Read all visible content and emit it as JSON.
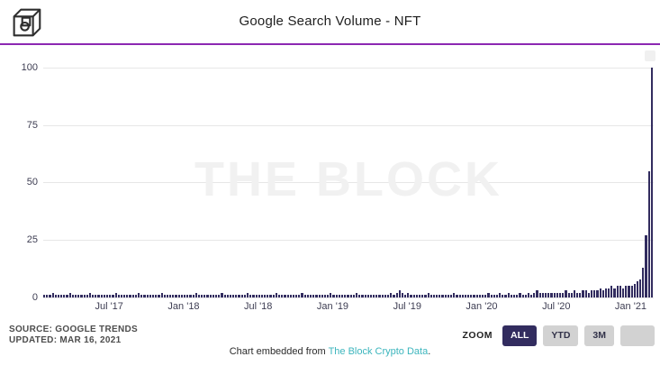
{
  "header": {
    "title": "Google Search Volume - NFT",
    "accent_color": "#8c28b2",
    "logo": "the-block-cube-logo"
  },
  "watermark": "THE BLOCK",
  "chart_data": {
    "type": "bar",
    "title": "Google Search Volume - NFT",
    "bar_color": "#322c5f",
    "grid": true,
    "ylim": [
      0,
      100
    ],
    "yticks": [
      0,
      25,
      50,
      75,
      100
    ],
    "x_description": "weekly values, late Jan 2017 through mid Mar 2021",
    "xticks": [
      {
        "label": "Jul '17",
        "index": 23
      },
      {
        "label": "Jan '18",
        "index": 49
      },
      {
        "label": "Jul '18",
        "index": 75
      },
      {
        "label": "Jan '19",
        "index": 101
      },
      {
        "label": "Jul '19",
        "index": 127
      },
      {
        "label": "Jan '20",
        "index": 153
      },
      {
        "label": "Jul '20",
        "index": 179
      },
      {
        "label": "Jan '21",
        "index": 205
      }
    ],
    "values": [
      1,
      1,
      1,
      2,
      1,
      1,
      1,
      1,
      1,
      2,
      1,
      1,
      1,
      1,
      1,
      1,
      2,
      1,
      1,
      1,
      1,
      1,
      1,
      1,
      1,
      2,
      1,
      1,
      1,
      1,
      1,
      1,
      1,
      2,
      1,
      1,
      1,
      1,
      1,
      1,
      1,
      2,
      1,
      1,
      1,
      1,
      1,
      1,
      1,
      1,
      1,
      1,
      1,
      2,
      1,
      1,
      1,
      1,
      1,
      1,
      1,
      1,
      2,
      1,
      1,
      1,
      1,
      1,
      1,
      1,
      1,
      2,
      1,
      1,
      1,
      1,
      1,
      1,
      1,
      1,
      1,
      2,
      1,
      1,
      1,
      1,
      1,
      1,
      1,
      1,
      2,
      1,
      1,
      1,
      1,
      1,
      1,
      1,
      1,
      1,
      2,
      1,
      1,
      1,
      1,
      1,
      1,
      1,
      1,
      2,
      1,
      1,
      1,
      1,
      1,
      1,
      1,
      1,
      1,
      1,
      1,
      2,
      1,
      2,
      3,
      2,
      1,
      2,
      1,
      1,
      1,
      1,
      1,
      1,
      2,
      1,
      1,
      1,
      1,
      1,
      1,
      1,
      1,
      2,
      1,
      1,
      1,
      1,
      1,
      1,
      1,
      1,
      1,
      1,
      1,
      2,
      1,
      1,
      1,
      2,
      1,
      1,
      2,
      1,
      1,
      1,
      2,
      1,
      1,
      2,
      1,
      2,
      3,
      2,
      2,
      2,
      2,
      2,
      2,
      2,
      2,
      2,
      3,
      2,
      2,
      3,
      2,
      2,
      3,
      3,
      2,
      3,
      3,
      3,
      4,
      3,
      4,
      4,
      5,
      4,
      5,
      5,
      4,
      5,
      5,
      5,
      6,
      7,
      8,
      13,
      27,
      55,
      100
    ]
  },
  "footer": {
    "source_line1": "SOURCE: GOOGLE TRENDS",
    "source_line2": "UPDATED: MAR 16, 2021",
    "zoom_label": "ZOOM",
    "zoom_buttons": [
      {
        "label": "ALL",
        "active": true
      },
      {
        "label": "YTD",
        "active": false
      },
      {
        "label": "3M",
        "active": false
      },
      {
        "label": "",
        "active": false
      }
    ],
    "embed_prefix": "Chart embedded from ",
    "embed_link": "The Block Crypto Data",
    "embed_suffix": "."
  }
}
